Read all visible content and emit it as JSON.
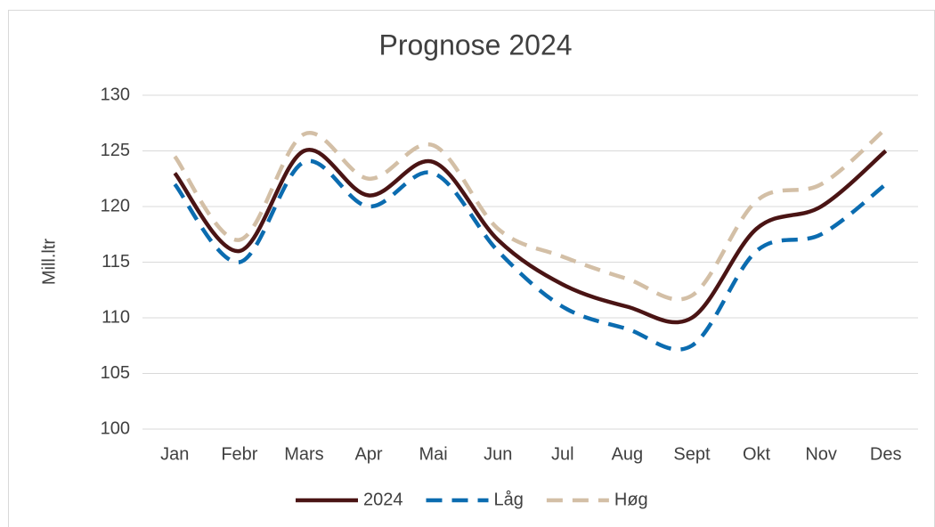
{
  "chart_data": {
    "type": "line",
    "title": "Prognose 2024",
    "y_label": "Mill.ltr",
    "categories": [
      "Jan",
      "Febr",
      "Mars",
      "Apr",
      "Mai",
      "Jun",
      "Jul",
      "Aug",
      "Sept",
      "Okt",
      "Nov",
      "Des"
    ],
    "series": [
      {
        "name": "2024",
        "color": "#4a1414",
        "style": "solid",
        "values": [
          123,
          116,
          125,
          121,
          124,
          117,
          113,
          111,
          110,
          118,
          120,
          125
        ]
      },
      {
        "name": "Låg",
        "color": "#0b6cb0",
        "style": "dashed",
        "values": [
          122,
          115,
          124,
          120,
          123,
          116,
          111,
          109,
          107.5,
          116,
          117.5,
          122
        ]
      },
      {
        "name": "Høg",
        "color": "#d3bfa6",
        "style": "dashed",
        "values": [
          124.5,
          117,
          126.5,
          122.5,
          125.5,
          118,
          115.5,
          113.5,
          112,
          120.5,
          122,
          127
        ]
      }
    ],
    "ylim": [
      100,
      130
    ],
    "yticks": [
      100,
      105,
      110,
      115,
      120,
      125,
      130
    ],
    "grid": true,
    "smooth": true,
    "legend": "bottom"
  }
}
